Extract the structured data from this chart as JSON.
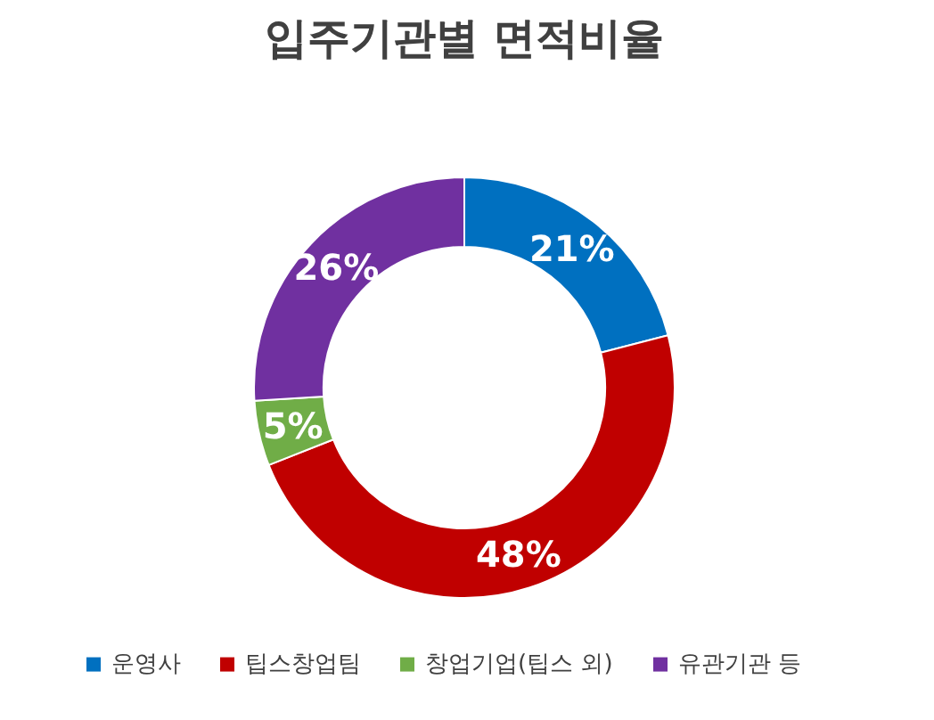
{
  "chart_data": {
    "type": "donut",
    "title": "입주기관별 면적비율",
    "categories": [
      "운영사",
      "팁스창업팀",
      "창업기업(팁스 외)",
      "유관기관 등"
    ],
    "values": [
      21,
      48,
      5,
      26
    ],
    "colors": [
      "#0070c0",
      "#c00000",
      "#70ad47",
      "#7030a0"
    ],
    "value_labels": [
      "21%",
      "48%",
      "5%",
      "26%"
    ],
    "legend": "bottom"
  }
}
